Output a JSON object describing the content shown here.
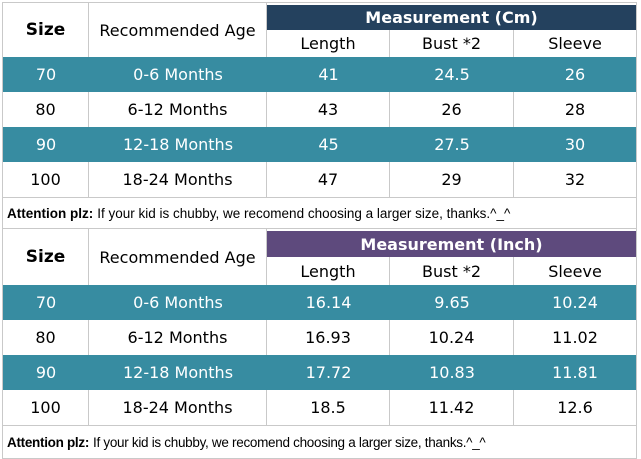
{
  "colors": {
    "teal": "#378ca1",
    "navy": "#24415e",
    "purple": "#5e4a7d",
    "grid": "#c9c9c9"
  },
  "tables": [
    {
      "header": {
        "size": "Size",
        "age": "Recommended Age",
        "measurement": "Measurement (Cm)",
        "columns": [
          "Length",
          "Bust *2",
          "Sleeve"
        ]
      },
      "rows": [
        {
          "size": "70",
          "age": "0-6 Months",
          "length": "41",
          "bust": "24.5",
          "sleeve": "26"
        },
        {
          "size": "80",
          "age": "6-12 Months",
          "length": "43",
          "bust": "26",
          "sleeve": "28"
        },
        {
          "size": "90",
          "age": "12-18 Months",
          "length": "45",
          "bust": "27.5",
          "sleeve": "30"
        },
        {
          "size": "100",
          "age": "18-24 Months",
          "length": "47",
          "bust": "29",
          "sleeve": "32"
        }
      ],
      "note": {
        "label": "Attention plz:",
        "text": "If your kid is chubby, we recomend choosing a larger size, thanks.^_^"
      }
    },
    {
      "header": {
        "size": "Size",
        "age": "Recommended Age",
        "measurement": "Measurement (Inch)",
        "columns": [
          "Length",
          "Bust *2",
          "Sleeve"
        ]
      },
      "rows": [
        {
          "size": "70",
          "age": "0-6 Months",
          "length": "16.14",
          "bust": "9.65",
          "sleeve": "10.24"
        },
        {
          "size": "80",
          "age": "6-12 Months",
          "length": "16.93",
          "bust": "10.24",
          "sleeve": "11.02"
        },
        {
          "size": "90",
          "age": "12-18 Months",
          "length": "17.72",
          "bust": "10.83",
          "sleeve": "11.81"
        },
        {
          "size": "100",
          "age": "18-24 Months",
          "length": "18.5",
          "bust": "11.42",
          "sleeve": "12.6"
        }
      ],
      "note": {
        "label": "Attention plz:",
        "text": "If your kid is chubby, we recomend choosing a larger size, thanks.^_^"
      }
    }
  ],
  "chart_data": [
    {
      "type": "table",
      "title": "Measurement (Cm)",
      "columns": [
        "Size",
        "Recommended Age",
        "Length",
        "Bust *2",
        "Sleeve"
      ],
      "rows": [
        [
          "70",
          "0-6 Months",
          41,
          24.5,
          26
        ],
        [
          "80",
          "6-12 Months",
          43,
          26,
          28
        ],
        [
          "90",
          "12-18 Months",
          45,
          27.5,
          30
        ],
        [
          "100",
          "18-24 Months",
          47,
          29,
          32
        ]
      ],
      "note": "Attention plz: If your kid is chubby, we recomend choosing a larger size, thanks.^_^"
    },
    {
      "type": "table",
      "title": "Measurement (Inch)",
      "columns": [
        "Size",
        "Recommended Age",
        "Length",
        "Bust *2",
        "Sleeve"
      ],
      "rows": [
        [
          "70",
          "0-6 Months",
          16.14,
          9.65,
          10.24
        ],
        [
          "80",
          "6-12 Months",
          16.93,
          10.24,
          11.02
        ],
        [
          "90",
          "12-18 Months",
          17.72,
          10.83,
          11.81
        ],
        [
          "100",
          "18-24 Months",
          18.5,
          11.42,
          12.6
        ]
      ],
      "note": "Attention plz: If your kid is chubby, we recomend choosing a larger size, thanks.^_^"
    }
  ]
}
